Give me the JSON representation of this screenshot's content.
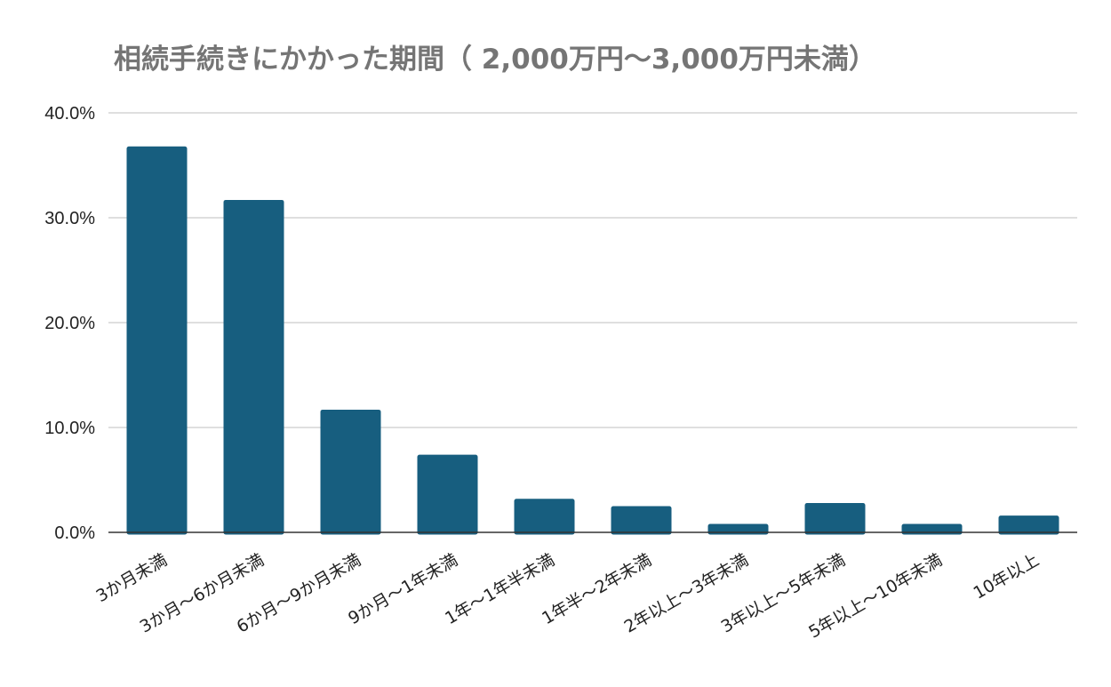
{
  "chart_data": {
    "type": "bar",
    "title": "相続手続きにかかった期間（ 2,000万円～3,000万円未満）",
    "xlabel": "",
    "ylabel": "",
    "ylim": [
      0,
      40
    ],
    "yticks": [
      0,
      10,
      20,
      30,
      40
    ],
    "ytick_labels": [
      "0.0%",
      "10.0%",
      "20.0%",
      "30.0%",
      "40.0%"
    ],
    "grid": true,
    "legend": "none",
    "categories": [
      "3か月未満",
      "3か月～6か月未満",
      "6か月～9か月未満",
      "9か月～1年未満",
      "1年～1年半未満",
      "1年半～2年未満",
      "2年以上～3年未満",
      "3年以上～5年未満",
      "5年以上～10年未満",
      "10年以上"
    ],
    "values": [
      36.8,
      31.7,
      11.7,
      7.4,
      3.2,
      2.5,
      0.8,
      2.8,
      0.8,
      1.6
    ],
    "colors": {
      "bar": "#175e7f",
      "title": "#757575",
      "grid": "#cccccc",
      "text": "#222222"
    }
  }
}
